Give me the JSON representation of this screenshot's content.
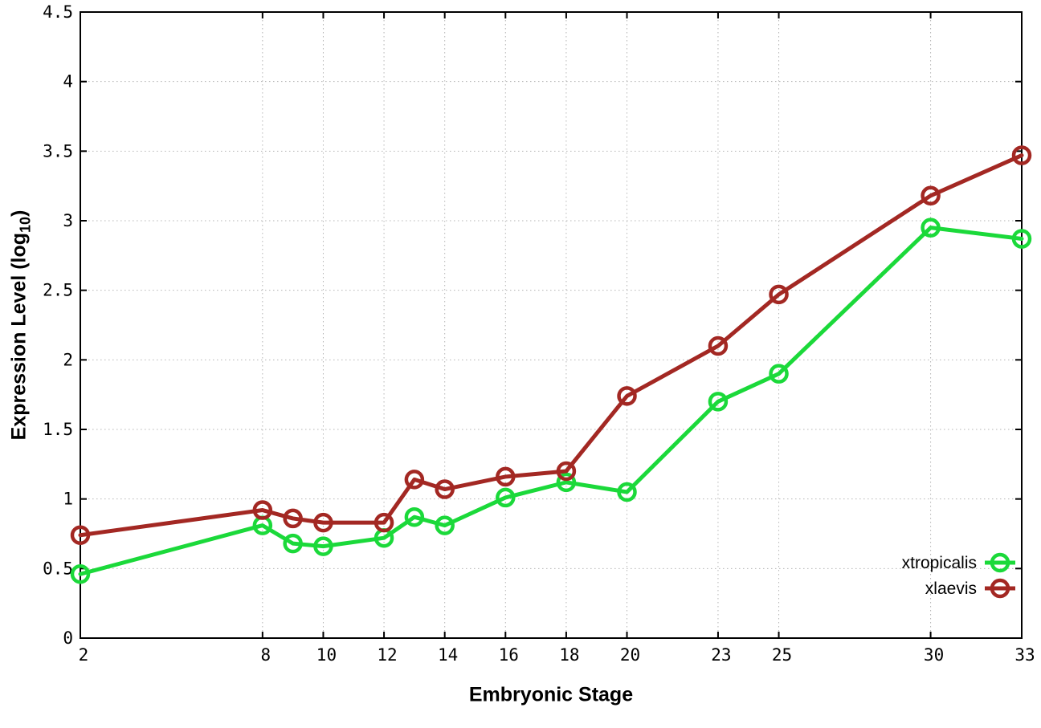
{
  "chart_data": {
    "type": "line",
    "title": "",
    "xlabel": "Embryonic Stage",
    "ylabel": "Expression Level (log10)",
    "ylabel_parts": {
      "pre": "Expression Level (log",
      "sub": "10",
      "post": ")"
    },
    "xlim": [
      2,
      33
    ],
    "ylim": [
      0,
      4.5
    ],
    "x_ticks": [
      2,
      8,
      10,
      12,
      14,
      16,
      18,
      20,
      23,
      25,
      30,
      33
    ],
    "y_ticks": [
      0,
      0.5,
      1,
      1.5,
      2,
      2.5,
      3,
      3.5,
      4,
      4.5
    ],
    "grid": true,
    "grid_style": "dotted",
    "grid_color": "#b5b5b5",
    "border_color": "#000000",
    "marker": "open-circle",
    "legend_position": "inside-bottom-right",
    "x": [
      2,
      8,
      9,
      10,
      12,
      13,
      14,
      16,
      18,
      20,
      23,
      25,
      30,
      33
    ],
    "series": [
      {
        "name": "xtropicalis",
        "color": "#1bd93a",
        "values": [
          0.46,
          0.81,
          0.68,
          0.66,
          0.72,
          0.87,
          0.81,
          1.01,
          1.12,
          1.05,
          1.7,
          1.9,
          2.95,
          2.87
        ]
      },
      {
        "name": "xlaevis",
        "color": "#a32823",
        "values": [
          0.74,
          0.92,
          0.86,
          0.83,
          0.83,
          1.14,
          1.07,
          1.16,
          1.2,
          1.74,
          2.1,
          2.47,
          3.18,
          3.47
        ]
      }
    ]
  }
}
